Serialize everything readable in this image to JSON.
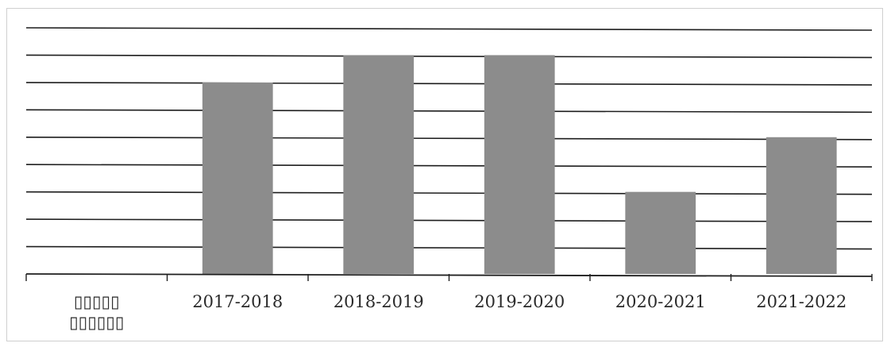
{
  "chart_data": {
    "type": "bar",
    "title": "",
    "xlabel": "",
    "ylabel": "",
    "categories": [
      "▯▯▯▯▯ ▯▯▯▯▯▯",
      "2017-2018",
      "2018-2019",
      "2019-2020",
      "2020-2021",
      "2021-2022"
    ],
    "values": [
      0,
      7,
      8,
      8,
      3,
      5
    ],
    "ylim": [
      0,
      9
    ],
    "grid": true,
    "legend": "none",
    "bar_color": "#8c8c8c",
    "grid_color": "#1e1e1e"
  }
}
